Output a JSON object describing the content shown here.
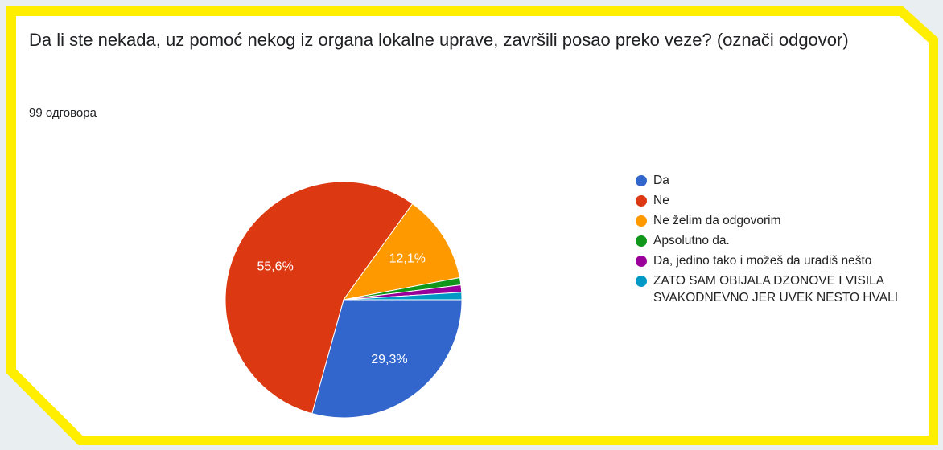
{
  "chart_data": {
    "type": "pie",
    "title": "Da li ste nekada, uz pomoć nekog iz organa lokalne uprave, završili posao preko veze? (označi odgovor)",
    "subtitle": "99 одговора",
    "categories": [
      "Da",
      "Ne",
      "Ne želim da odgovorim",
      "Apsolutno da.",
      "Da, jedino tako i možeš da uradiš nešto",
      "ZATO SAM OBIJALA DZONOVE I VISILA SVAKODNEVNO JER UVEK NESTO HVALI"
    ],
    "values": [
      29.3,
      55.6,
      12.1,
      1.0,
      1.0,
      1.0
    ],
    "value_labels": [
      "29,3%",
      "55,6%",
      "12,1%",
      null,
      null,
      null
    ],
    "colors": [
      "#3366cc",
      "#dc3912",
      "#ff9900",
      "#109618",
      "#990099",
      "#0099c6"
    ],
    "legend": "right"
  }
}
